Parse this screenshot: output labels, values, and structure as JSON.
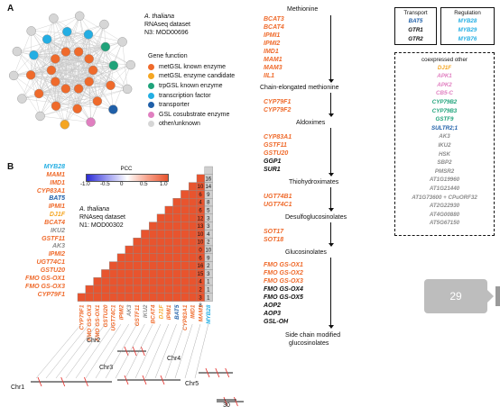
{
  "panel_a": {
    "letter": "A",
    "dataset_species": "A. thaliana",
    "dataset_type": "RNAseq dataset",
    "dataset_id": "N3: MOD00696",
    "legend_title": "Gene function",
    "legend": [
      {
        "label": "metGSL known enzyme",
        "color": "#ef6a2b"
      },
      {
        "label": "metGSL enzyme candidate",
        "color": "#f5a623"
      },
      {
        "label": "trpGSL known enzyme",
        "color": "#1fa37a"
      },
      {
        "label": "transcription factor",
        "color": "#23aee3"
      },
      {
        "label": "transporter",
        "color": "#1f5fa8"
      },
      {
        "label": "GSL cosubstrate enzyme",
        "color": "#e07fc0"
      },
      {
        "label": "other/unknown",
        "color": "#d6d6d6"
      }
    ],
    "network_nodes": [
      "orange",
      "orange",
      "orange",
      "orange",
      "orange",
      "orange",
      "orange",
      "orange",
      "orange",
      "orange",
      "orange",
      "orange",
      "orange",
      "orange",
      "orange",
      "orange",
      "cyan",
      "cyan",
      "cyan",
      "cyan",
      "green",
      "green",
      "navy",
      "pink",
      "yellow",
      "gray",
      "gray",
      "gray",
      "gray",
      "gray",
      "gray",
      "gray",
      "gray",
      "gray",
      "gray",
      "gray"
    ]
  },
  "panel_b": {
    "letter": "B",
    "dataset_species": "A. thaliana",
    "dataset_type": "RNAseq dataset",
    "dataset_id": "N1: MOD00302",
    "colorbar_title": "PCC",
    "colorbar_ticks": [
      "-1.0",
      "-0.5",
      "0",
      "0.5",
      "1.0"
    ],
    "genes": [
      {
        "name": "MYB28",
        "color": "#23aee3"
      },
      {
        "name": "MAM1",
        "color": "#ef6a2b"
      },
      {
        "name": "IMD1",
        "color": "#ef6a2b"
      },
      {
        "name": "CYP83A1",
        "color": "#ef6a2b"
      },
      {
        "name": "BAT5",
        "color": "#1f5fa8"
      },
      {
        "name": "IPMI1",
        "color": "#ef6a2b"
      },
      {
        "name": "DJ1F",
        "color": "#f5a623"
      },
      {
        "name": "BCAT4",
        "color": "#ef6a2b"
      },
      {
        "name": "IKU2",
        "color": "#8c8c8c"
      },
      {
        "name": "GSTF11",
        "color": "#ef6a2b"
      },
      {
        "name": "AK3",
        "color": "#8c8c8c"
      },
      {
        "name": "IPMI2",
        "color": "#ef6a2b"
      },
      {
        "name": "UGT74C1",
        "color": "#ef6a2b"
      },
      {
        "name": "GSTU20",
        "color": "#ef6a2b"
      },
      {
        "name": "FMO GS-OX1",
        "color": "#ef6a2b"
      },
      {
        "name": "FMO GS-OX3",
        "color": "#ef6a2b"
      },
      {
        "name": "CYP79F1",
        "color": "#ef6a2b"
      }
    ],
    "bottom_genes": [
      "CYP79F1",
      "FMO GS-OX3",
      "FMO GS-OX1",
      "GSTU20",
      "UGT74C1",
      "IPMI2",
      "AK3",
      "GSTF11",
      "IKU2",
      "BCAT4",
      "DJ1F",
      "IPMI1",
      "BAT5",
      "CYP83A1",
      "IMD1",
      "MAM1",
      "MYB28"
    ],
    "distances_right": [
      "16",
      "14",
      "9",
      "8",
      "5",
      "3",
      "3",
      "4",
      "2",
      "10",
      "9",
      "2",
      "3",
      "1",
      "1",
      "1"
    ],
    "distances_right_top": [
      "10",
      "6",
      "4",
      "6",
      "12",
      "13",
      "10",
      "10",
      "0",
      "6",
      "16",
      "15",
      "4",
      "2",
      "3",
      "8"
    ],
    "chromosomes": [
      "Chr1",
      "Chr2",
      "Chr3",
      "Chr4",
      "Chr5"
    ],
    "scale_label": "30"
  },
  "pathway": {
    "start": "Methionine",
    "group1": [
      "BCAT3",
      "BCAT4",
      "IPMI1",
      "IPMI2",
      "IMD1",
      "MAM1",
      "MAM3",
      "IIL1"
    ],
    "step1": "Chain-elongated methionine",
    "group2": [
      "CYP79F1",
      "CYP79F2"
    ],
    "step2": "Aldoximes",
    "group3": [
      "CYP83A1",
      "GSTF11",
      "GSTU20",
      "GGP1",
      "SUR1"
    ],
    "step3": "Thiohydroximates",
    "group4": [
      "UGT74B1",
      "UGT74C1"
    ],
    "step4": "Desulfoglucosinolates",
    "group5": [
      "SOT17",
      "SOT18"
    ],
    "step5": "Glucosinolates",
    "group6": [
      "FMO GS-OX1",
      "FMO GS-OX2",
      "FMO GS-OX3",
      "FMO GS-OX4",
      "FMO GS-OX5",
      "AOP2",
      "AOP3",
      "GSL-OH"
    ],
    "step6": "Side chain modified glucosinolates",
    "step6_line1": "Side chain modified",
    "step6_line2": "glucosinolates"
  },
  "transport_box": {
    "title": "Transport",
    "genes": [
      "BAT5",
      "GTR1",
      "GTR2"
    ]
  },
  "regulation_box": {
    "title": "Regulation",
    "genes": [
      "MYB28",
      "MYB29",
      "MYB76"
    ]
  },
  "coexpressed_box": {
    "title": "coexpressed other",
    "genes": [
      {
        "name": "DJ1F",
        "color": "#f5a623"
      },
      {
        "name": "APK1",
        "color": "#e07fc0"
      },
      {
        "name": "APK2",
        "color": "#e07fc0"
      },
      {
        "name": "CB5-C",
        "color": "#e07fc0"
      },
      {
        "name": "CYP79B2",
        "color": "#1fa37a"
      },
      {
        "name": "CYP79B3",
        "color": "#1fa37a"
      },
      {
        "name": "GSTF9",
        "color": "#1fa37a"
      },
      {
        "name": "SULTR2;1",
        "color": "#1f5fa8"
      },
      {
        "name": "AK3",
        "color": "#8c8c8c"
      },
      {
        "name": "IKU2",
        "color": "#8c8c8c"
      },
      {
        "name": "HSK",
        "color": "#8c8c8c"
      },
      {
        "name": "SBP2",
        "color": "#8c8c8c"
      },
      {
        "name": "PMSR2",
        "color": "#8c8c8c"
      },
      {
        "name": "AT1G19960",
        "color": "#8c8c8c"
      },
      {
        "name": "AT1G21440",
        "color": "#8c8c8c"
      },
      {
        "name": "AT1G73600 + CPuORF32",
        "color": "#8c8c8c"
      },
      {
        "name": "AT2G22930",
        "color": "#8c8c8c"
      },
      {
        "name": "AT4G00880",
        "color": "#8c8c8c"
      },
      {
        "name": "AT5G67150",
        "color": "#8c8c8c"
      }
    ]
  },
  "page_badge": "29",
  "colors": {
    "orange": "#ef6a2b",
    "black_gene": "#111111",
    "heat_cell": "#e8542e"
  }
}
